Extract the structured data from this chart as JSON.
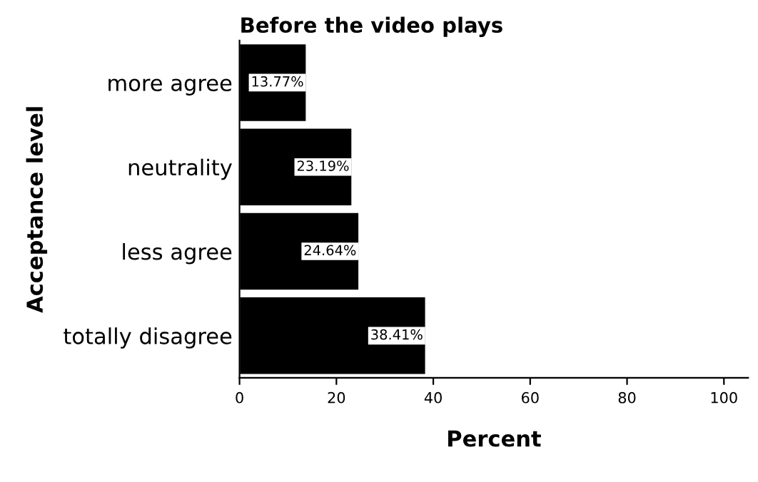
{
  "chart_data": {
    "type": "bar",
    "orientation": "horizontal",
    "title": "Before the video plays",
    "xlabel": "Percent",
    "ylabel": "Acceptance level",
    "categories": [
      "more agree",
      "neutrality",
      "less agree",
      "totally disagree"
    ],
    "values": [
      13.77,
      23.19,
      24.64,
      38.41
    ],
    "value_labels": [
      "13.77%",
      "23.19%",
      "24.64%",
      "38.41%"
    ],
    "color": "#000000",
    "xlim": [
      0,
      105
    ],
    "xticks": [
      0,
      20,
      40,
      60,
      80,
      100
    ],
    "grid": false,
    "legend": false
  }
}
